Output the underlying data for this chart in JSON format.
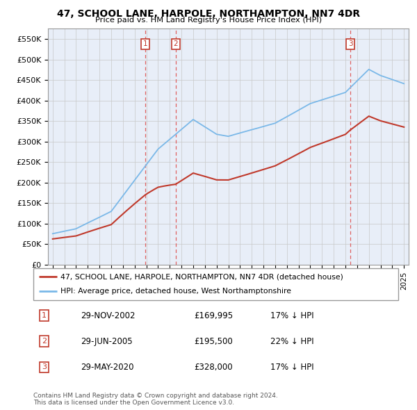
{
  "title": "47, SCHOOL LANE, HARPOLE, NORTHAMPTON, NN7 4DR",
  "subtitle": "Price paid vs. HM Land Registry's House Price Index (HPI)",
  "ylabel_ticks": [
    "£0",
    "£50K",
    "£100K",
    "£150K",
    "£200K",
    "£250K",
    "£300K",
    "£350K",
    "£400K",
    "£450K",
    "£500K",
    "£550K"
  ],
  "ytick_values": [
    0,
    50000,
    100000,
    150000,
    200000,
    250000,
    300000,
    350000,
    400000,
    450000,
    500000,
    550000
  ],
  "ylim": [
    0,
    575000
  ],
  "sale_markers": [
    {
      "year": 2002.92,
      "price": 169995,
      "label": "1"
    },
    {
      "year": 2005.5,
      "price": 195500,
      "label": "2"
    },
    {
      "year": 2020.42,
      "price": 328000,
      "label": "3"
    }
  ],
  "sale_dates_table": [
    {
      "num": "1",
      "date": "29-NOV-2002",
      "price": "£169,995",
      "hpi": "17% ↓ HPI"
    },
    {
      "num": "2",
      "date": "29-JUN-2005",
      "price": "£195,500",
      "hpi": "22% ↓ HPI"
    },
    {
      "num": "3",
      "date": "29-MAY-2020",
      "price": "£328,000",
      "hpi": "17% ↓ HPI"
    }
  ],
  "legend_line1": "47, SCHOOL LANE, HARPOLE, NORTHAMPTON, NN7 4DR (detached house)",
  "legend_line2": "HPI: Average price, detached house, West Northamptonshire",
  "footnote1": "Contains HM Land Registry data © Crown copyright and database right 2024.",
  "footnote2": "This data is licensed under the Open Government Licence v3.0.",
  "hpi_color": "#7ab8e8",
  "price_color": "#c0392b",
  "vline_color": "#e06060",
  "background_color": "#e8eef8",
  "grid_color": "#c8c8c8"
}
